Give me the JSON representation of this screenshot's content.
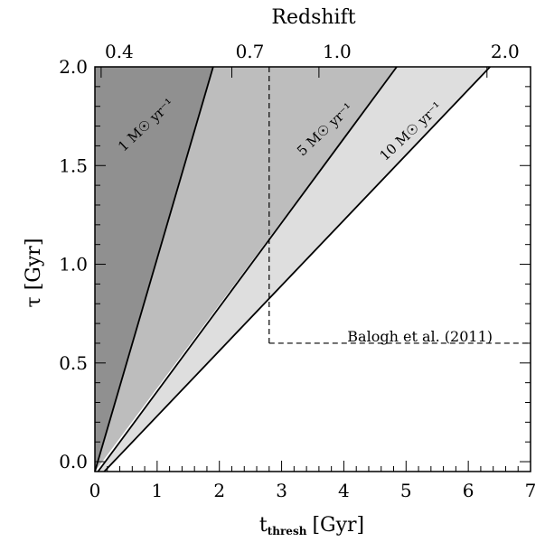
{
  "chart_data": {
    "type": "area",
    "xlabel": "t",
    "xlabel_sub": "thresh",
    "xlabel_unit": "[Gyr]",
    "ylabel": "τ [Gyr]",
    "top_axis_label": "Redshift",
    "xlim": [
      0,
      7
    ],
    "ylim": [
      -0.05,
      2.0
    ],
    "x_ticks": [
      0,
      1,
      2,
      3,
      4,
      5,
      6,
      7
    ],
    "y_ticks": [
      "0.0",
      "0.5",
      "1.0",
      "1.5",
      "2.0"
    ],
    "top_ticks": [
      {
        "label": "0.4",
        "x": 0.1
      },
      {
        "label": "0.7",
        "x": 2.2
      },
      {
        "label": "1.0",
        "x": 3.6
      },
      {
        "label": "2.0",
        "x": 6.3
      }
    ],
    "regions": [
      {
        "label": "1 M☉ yr⁻¹",
        "color": "#909090",
        "polygon": [
          [
            0.0,
            -0.05
          ],
          [
            0.0,
            2.0
          ],
          [
            1.9,
            2.0
          ]
        ]
      },
      {
        "label": "5 M☉ yr⁻¹",
        "color": "#bdbdbd",
        "polygon": [
          [
            0.0,
            -0.05
          ],
          [
            1.9,
            2.0
          ],
          [
            4.85,
            2.0
          ]
        ]
      },
      {
        "label": "10 M☉ yr⁻¹",
        "color": "#dedede",
        "polygon": [
          [
            0.05,
            -0.05
          ],
          [
            4.85,
            2.0
          ],
          [
            6.35,
            2.0
          ],
          [
            0.15,
            -0.05
          ]
        ]
      }
    ],
    "lines": [
      [
        [
          0.0,
          -0.05
        ],
        [
          1.9,
          2.0
        ]
      ],
      [
        [
          0.05,
          -0.05
        ],
        [
          4.85,
          2.0
        ]
      ],
      [
        [
          0.15,
          -0.05
        ],
        [
          6.35,
          2.0
        ]
      ]
    ],
    "reference_box": {
      "label": "Balogh et al. (2011)",
      "x_min": 2.8,
      "y_min": 0.6
    },
    "grid": false
  }
}
